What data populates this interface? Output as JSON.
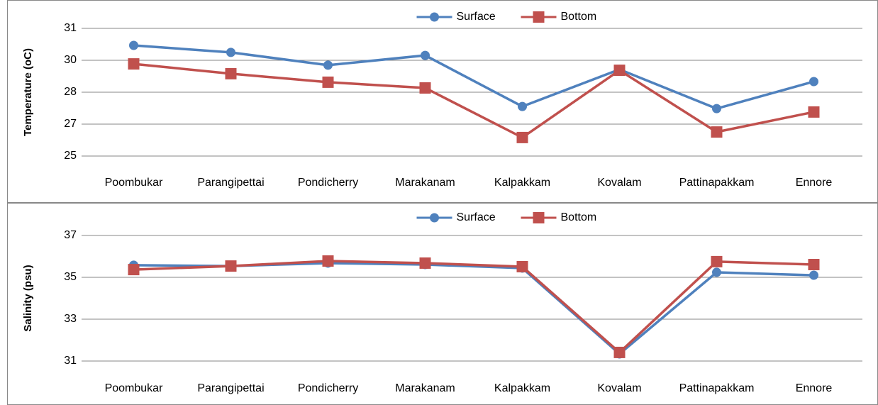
{
  "chart_data": [
    {
      "type": "line",
      "y_label": "Temperature (oC)",
      "categories": [
        "Poombukar",
        "Parangipettai",
        "Pondicherry",
        "Marakanam",
        "Kalpakkam",
        "Kovalam",
        "Pattinapakkam",
        "Ennore"
      ],
      "series": [
        {
          "name": "Surface",
          "color": "#4f81bd",
          "marker": "circle",
          "values": [
            30.2,
            29.87,
            29.27,
            29.73,
            27.33,
            29.07,
            27.23,
            28.5
          ]
        },
        {
          "name": "Bottom",
          "color": "#c0504d",
          "marker": "square",
          "values": [
            29.33,
            28.87,
            28.47,
            28.2,
            25.87,
            29.03,
            26.13,
            27.07
          ]
        }
      ],
      "ylim": [
        25,
        31
      ],
      "yticks": [
        25,
        {
          "value": 26.5,
          "label": "27"
        },
        28,
        {
          "value": 29.5,
          "label": "30"
        },
        31
      ],
      "grid": true,
      "legend": "top"
    },
    {
      "type": "line",
      "y_label": "Salinity (psu)",
      "categories": [
        "Poombukar",
        "Parangipettai",
        "Pondicherry",
        "Marakanam",
        "Kalpakkam",
        "Kovalam",
        "Pattinapakkam",
        "Ennore"
      ],
      "series": [
        {
          "name": "Surface",
          "color": "#4f81bd",
          "marker": "circle",
          "values": [
            35.58,
            35.54,
            35.68,
            35.61,
            35.44,
            31.34,
            35.24,
            35.1
          ]
        },
        {
          "name": "Bottom",
          "color": "#c0504d",
          "marker": "square",
          "values": [
            35.37,
            35.54,
            35.78,
            35.68,
            35.51,
            31.41,
            35.75,
            35.61
          ]
        }
      ],
      "ylim": [
        31,
        37
      ],
      "yticks": [
        31,
        33,
        35,
        37
      ],
      "grid": true,
      "legend": "top"
    }
  ]
}
